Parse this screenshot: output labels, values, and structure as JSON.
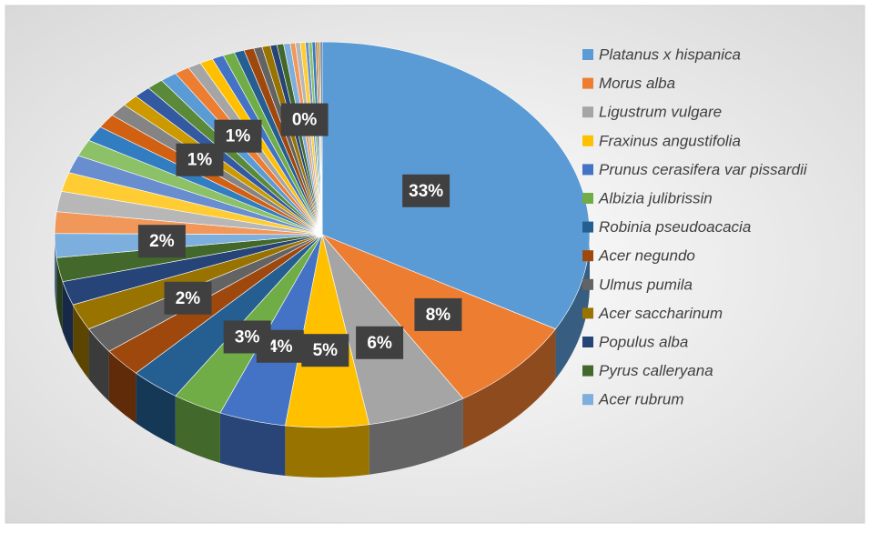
{
  "chart_data": {
    "type": "pie3d",
    "categories": [
      "Platanus x hispanica",
      "Morus alba",
      "Ligustrum vulgare",
      "Fraxinus angustifolia",
      "Prunus cerasifera var pissardii",
      "Albizia julibrissin",
      "Robinia pseudoacacia",
      "Acer negundo",
      "Ulmus pumila",
      "Acer saccharinum",
      "Populus alba",
      "Pyrus calleryana",
      "Acer rubrum",
      null,
      null,
      null,
      null,
      null,
      null,
      null,
      null,
      null,
      null,
      null,
      null,
      null,
      null,
      null,
      null,
      null,
      null,
      null,
      null,
      null,
      null,
      null,
      null,
      null,
      null,
      null,
      null,
      null,
      null,
      null,
      null,
      null,
      null
    ],
    "values": [
      33,
      8,
      6,
      5,
      4,
      3,
      3,
      2.4,
      2.2,
      2.2,
      2,
      2,
      2,
      1.8,
      1.7,
      1.6,
      1.5,
      1.4,
      1.3,
      1.2,
      1.1,
      1.0,
      1.0,
      1.0,
      1.0,
      0.9,
      0.8,
      0.8,
      0.7,
      0.7,
      0.6,
      0.6,
      0.5,
      0.5,
      0.4,
      0.4,
      0.4,
      0.3,
      0.3,
      0.3,
      0.2,
      0.2,
      0.2,
      0.1,
      0.1,
      0.1,
      0.1
    ],
    "value_labels": [
      "33%",
      "8%",
      "6%",
      "5%",
      "4%",
      "3%",
      null,
      null,
      "2%",
      null,
      null,
      null,
      "2%",
      null,
      null,
      null,
      null,
      null,
      null,
      null,
      "1%",
      null,
      null,
      null,
      null,
      "1%",
      null,
      null,
      null,
      null,
      null,
      null,
      null,
      null,
      null,
      null,
      null,
      "0%",
      null,
      null,
      null,
      null,
      null,
      null,
      null,
      null,
      null
    ],
    "colors": [
      "#5b9bd5",
      "#ed7d31",
      "#a5a5a5",
      "#ffc000",
      "#4472c4",
      "#70ad47",
      "#255e91",
      "#9e480e",
      "#636363",
      "#997300",
      "#264478",
      "#43682b",
      "#7cafdd",
      "#f1975a",
      "#b7b7b7",
      "#ffcd33",
      "#698ed0",
      "#8cc168",
      "#327dc2",
      "#d26012",
      "#848484",
      "#cc9a00",
      "#335aa1",
      "#5a8a39"
    ],
    "legend": "right"
  }
}
